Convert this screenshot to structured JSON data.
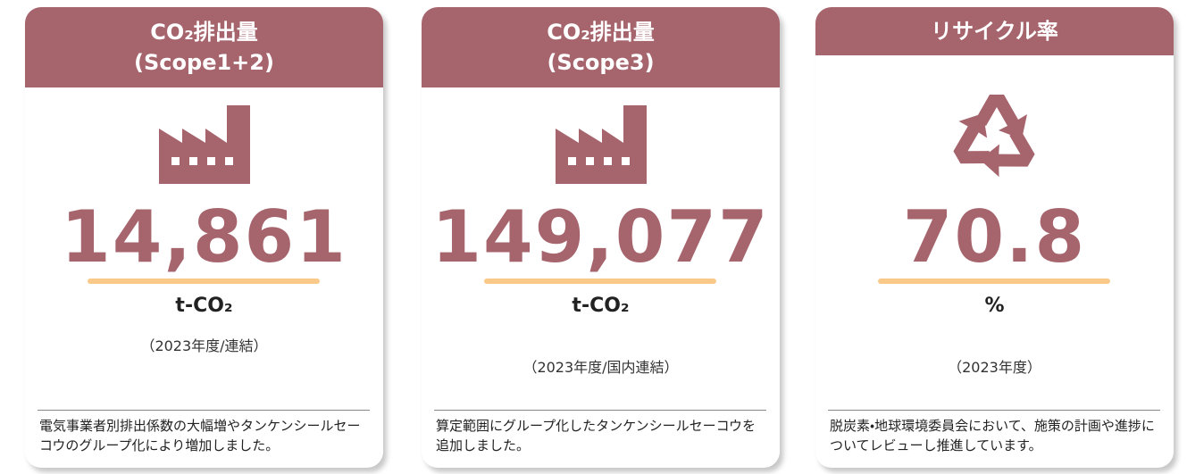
{
  "cards": [
    {
      "title": [
        "CO₂排出量",
        "(Scope1+2)"
      ],
      "value": "14,861",
      "unit": "t-CO₂",
      "period": "（2023年度/連結）",
      "note": "電気事業者別排出係数の大幅増やタンケンシールセーコウのグループ化により増加しました。"
    },
    {
      "title": [
        "CO₂排出量",
        "(Scope3)"
      ],
      "value": "149,077",
      "unit": "t-CO₂",
      "period": "（2023年度/国内連結）",
      "note": "算定範囲にグループ化したタンケンシールセーコウを追加しました。"
    },
    {
      "title": [
        "リサイクル率"
      ],
      "value": "70.8",
      "unit": "%",
      "period": "（2023年度）",
      "note": "脱炭素・地球環境委員会において、施策の計画や進捗についてレビューし推進しています。"
    }
  ]
}
